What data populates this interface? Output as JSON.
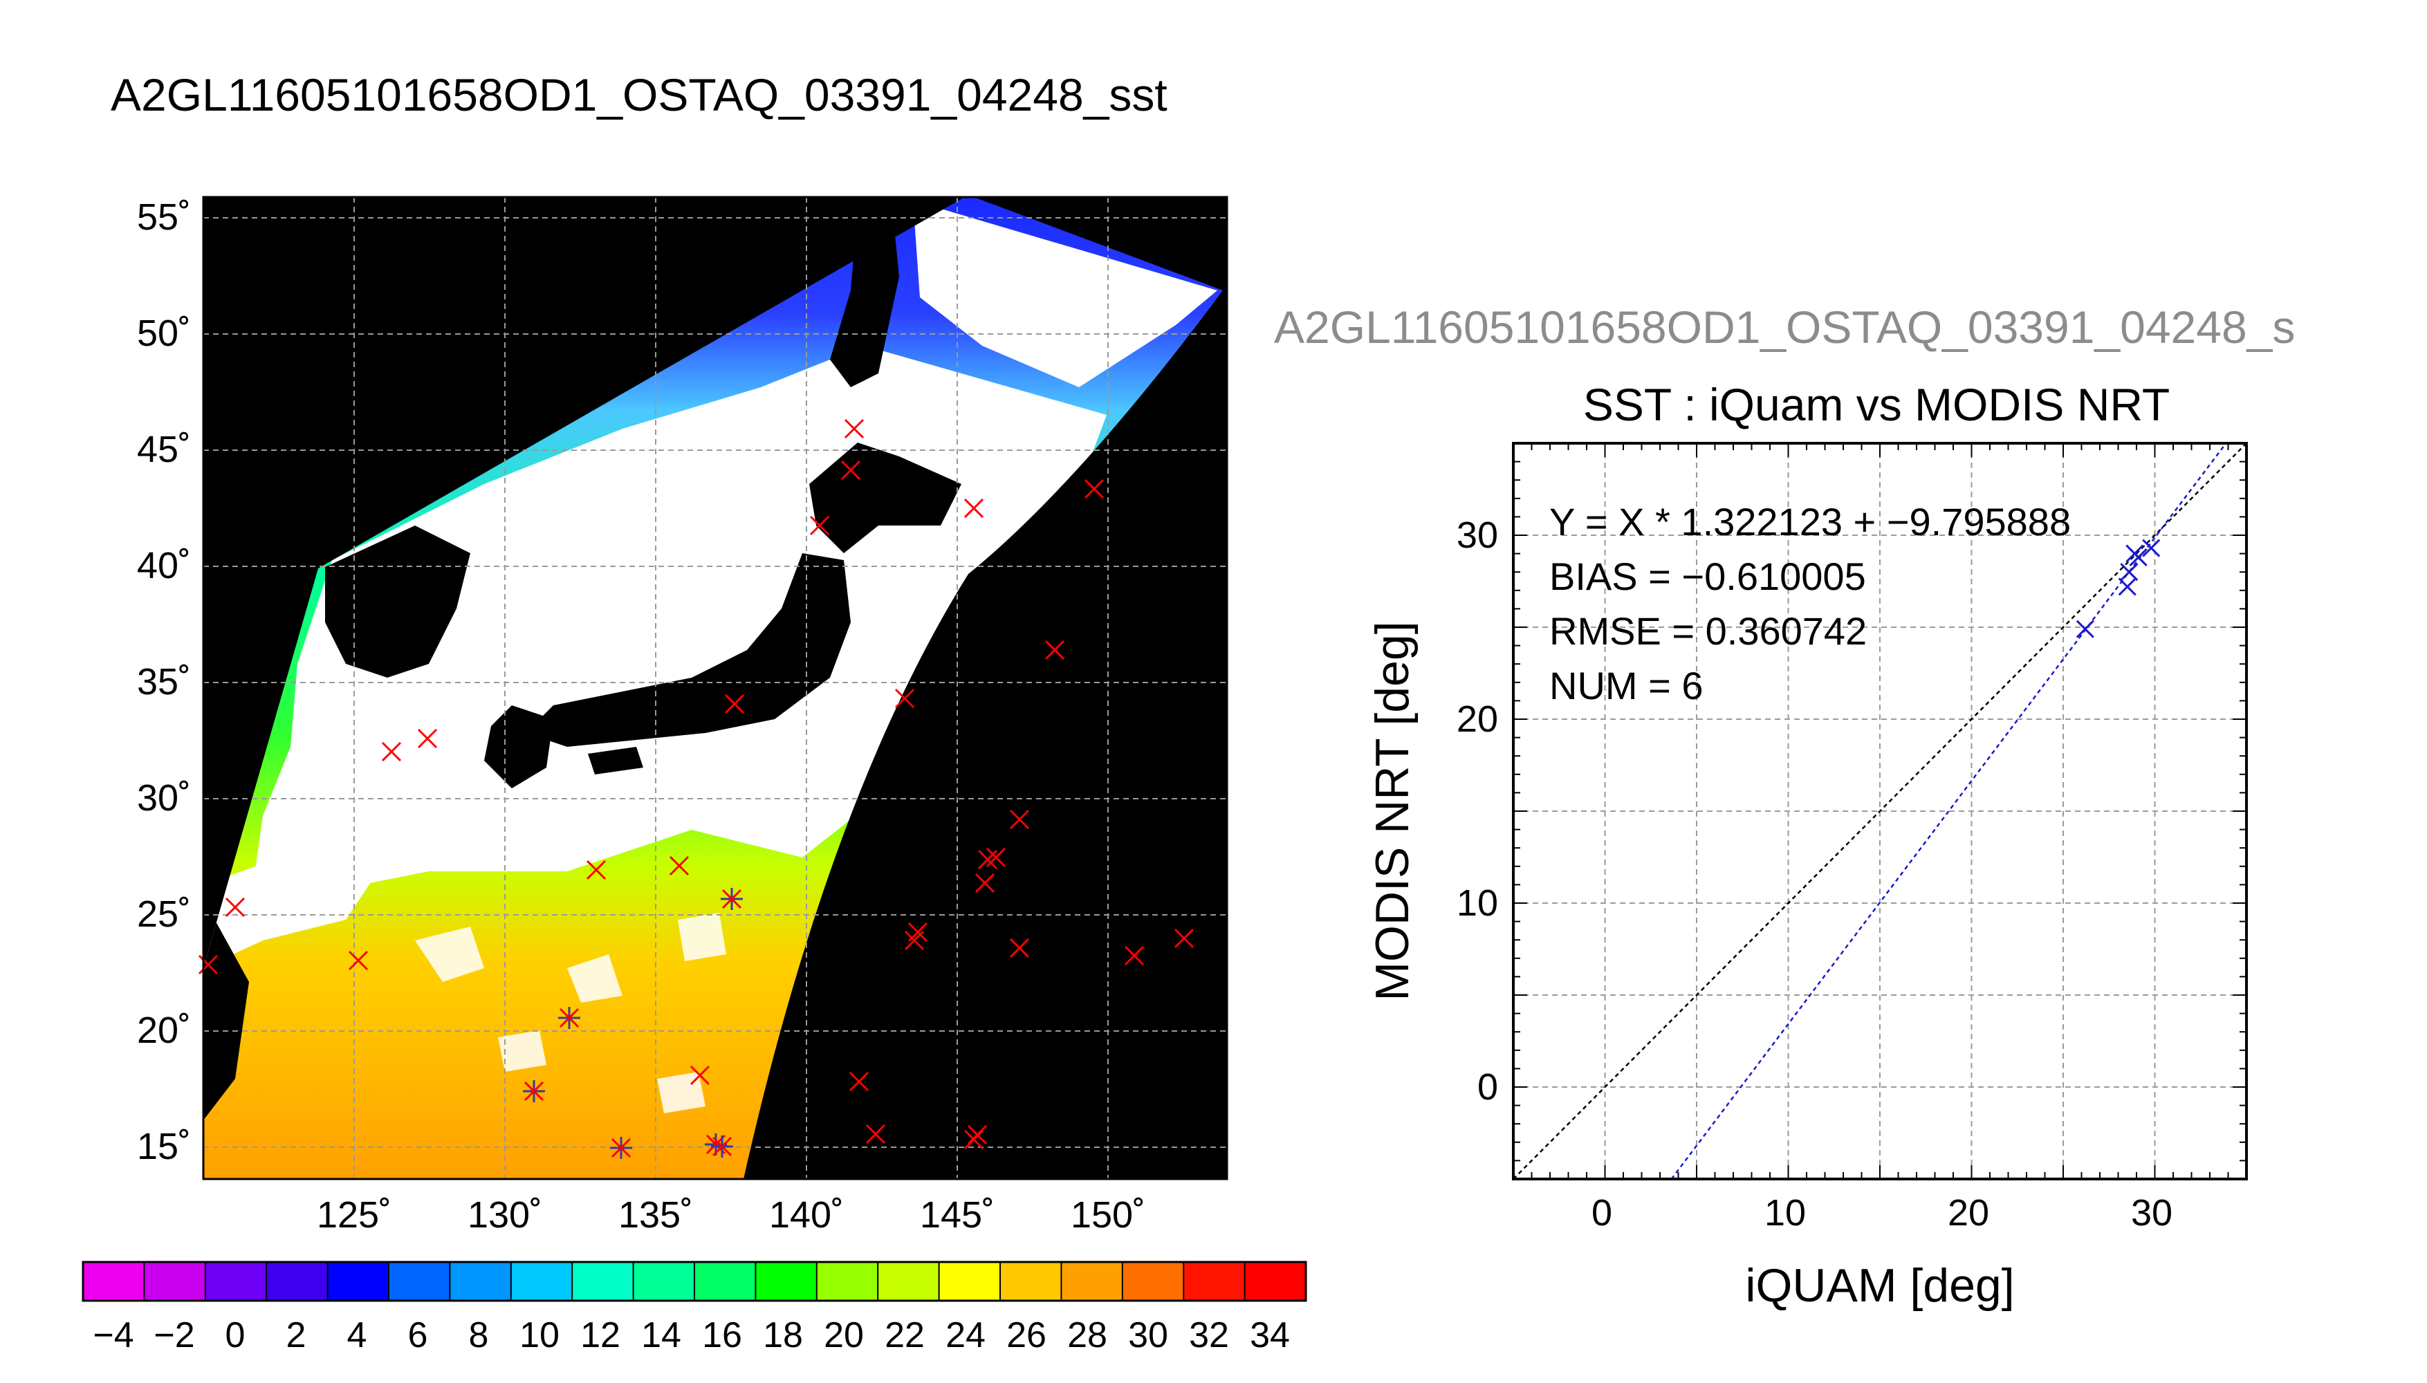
{
  "map_panel": {
    "title": "A2GL11605101658OD1_OSTAQ_03391_04248_sst",
    "lat_ticks": [
      "55˚",
      "50˚",
      "45˚",
      "40˚",
      "35˚",
      "30˚",
      "25˚",
      "20˚",
      "15˚"
    ],
    "lon_ticks": [
      "125˚",
      "130˚",
      "135˚",
      "140˚",
      "145˚",
      "150˚"
    ],
    "colorbar": {
      "labels": [
        "−4",
        "−2",
        "0",
        "2",
        "4",
        "6",
        "8",
        "10",
        "12",
        "14",
        "16",
        "18",
        "20",
        "22",
        "24",
        "26",
        "28",
        "30",
        "32",
        "34"
      ],
      "colors": [
        "#ee00ee",
        "#c800ee",
        "#9a00f5",
        "#6e00f5",
        "#3c00ee",
        "#0000ff",
        "#0032ff",
        "#0064ff",
        "#0096ff",
        "#00c8ff",
        "#00ffff",
        "#00ffc8",
        "#00ff96",
        "#00ff64",
        "#00ff00",
        "#64ff00",
        "#96ff00",
        "#c8ff00",
        "#ffff00",
        "#ffe100",
        "#ffc800",
        "#ffa000",
        "#ff6e00",
        "#ff3c00",
        "#ff1400",
        "#ff0000"
      ]
    },
    "colors": {
      "land": "#000000",
      "cloud": "#ffffff",
      "grid": "#9a9a9a",
      "marker": "#ff0000",
      "match_marker": "#3a3aa0"
    }
  },
  "scatter_panel": {
    "file_title": "A2GL11605101658OD1_OSTAQ_03391_04248_s",
    "title": "SST : iQuam vs MODIS NRT",
    "stats": [
      "Y = X * 1.322123 + −9.795888",
      "BIAS = −0.610005",
      "RMSE = 0.360742",
      "NUM = 6"
    ]
  },
  "chart_data": {
    "type": "scatter",
    "title": "SST : iQuam vs MODIS NRT",
    "xlabel": "iQUAM [deg]",
    "ylabel": "MODIS NRT [deg]",
    "xlim": [
      -5,
      35
    ],
    "ylim": [
      -5,
      35
    ],
    "xticks": [
      0,
      10,
      20,
      30
    ],
    "yticks": [
      0,
      10,
      20,
      30
    ],
    "grid": true,
    "points": [
      {
        "x": 26.2,
        "y": 24.9
      },
      {
        "x": 28.5,
        "y": 27.2
      },
      {
        "x": 28.6,
        "y": 28.0
      },
      {
        "x": 28.9,
        "y": 29.0
      },
      {
        "x": 29.1,
        "y": 28.8
      },
      {
        "x": 29.8,
        "y": 29.3
      }
    ],
    "fit": {
      "slope": 1.322123,
      "intercept": -9.795888
    },
    "colors": {
      "points": "#1a1acc",
      "fit_line": "#1a1acc",
      "one_to_one": "#000000"
    }
  }
}
